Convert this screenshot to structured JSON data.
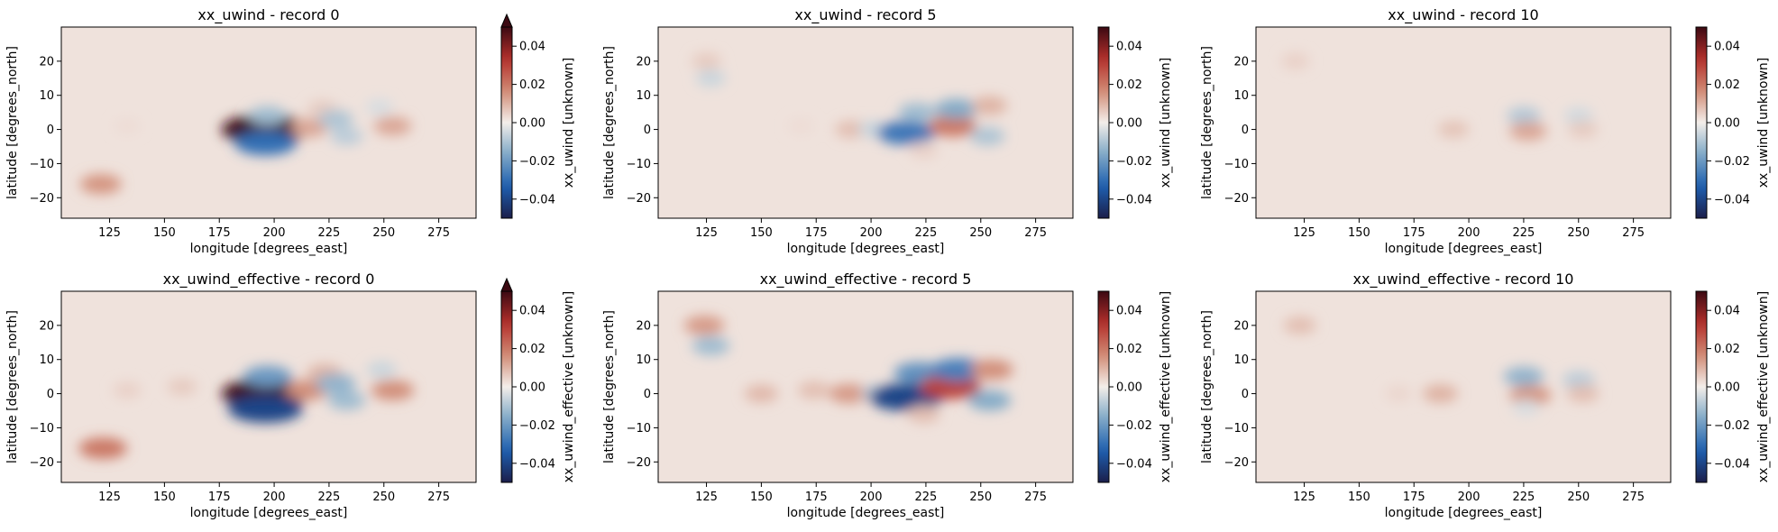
{
  "figure": {
    "panels": [
      {
        "title": "xx_uwind - record 0",
        "variable": "xx_uwind",
        "record": 0,
        "colorbar_label": "xx_uwind [unknown]",
        "extend": "max"
      },
      {
        "title": "xx_uwind - record 5",
        "variable": "xx_uwind",
        "record": 5,
        "colorbar_label": "xx_uwind [unknown]",
        "extend": "neither"
      },
      {
        "title": "xx_uwind - record 10",
        "variable": "xx_uwind",
        "record": 10,
        "colorbar_label": "xx_uwind [unknown]",
        "extend": "neither"
      },
      {
        "title": "xx_uwind_effective - record 0",
        "variable": "xx_uwind_effective",
        "record": 0,
        "colorbar_label": "xx_uwind_effective [unknown]",
        "extend": "max"
      },
      {
        "title": "xx_uwind_effective - record 5",
        "variable": "xx_uwind_effective",
        "record": 5,
        "colorbar_label": "xx_uwind_effective [unknown]",
        "extend": "neither"
      },
      {
        "title": "xx_uwind_effective - record 10",
        "variable": "xx_uwind_effective",
        "record": 10,
        "colorbar_label": "xx_uwind_effective [unknown]",
        "extend": "neither"
      }
    ]
  },
  "chart_data": {
    "type": "heatmap",
    "xlabel": "longitude [degrees_east]",
    "ylabel": "latitude [degrees_north]",
    "xlim": [
      103,
      292
    ],
    "ylim": [
      -26,
      30
    ],
    "xticks": [
      125,
      150,
      175,
      200,
      225,
      250,
      275
    ],
    "yticks": [
      -20,
      -10,
      0,
      10,
      20
    ],
    "colorbar": {
      "vmin": -0.05,
      "vmax": 0.05,
      "ticks": [
        -0.04,
        -0.02,
        0.0,
        0.02,
        0.04
      ],
      "tick_labels": [
        "−0.04",
        "−0.02",
        "0.00",
        "0.02",
        "0.04"
      ],
      "colormap": "balance (diverging: navy → blue → white → red → dark red)",
      "colors": [
        "#1b1e4a",
        "#1e5fb0",
        "#7fa8c6",
        "#f3eeea",
        "#d08a74",
        "#b3302b",
        "#3c0912"
      ]
    },
    "background_value": 0.002,
    "panels": [
      {
        "features": [
          {
            "lon": 196,
            "lat": 0,
            "value": 0.05
          },
          {
            "lon": 197,
            "lat": 4,
            "value": -0.012
          },
          {
            "lon": 196,
            "lat": -4,
            "value": -0.03
          },
          {
            "lon": 216,
            "lat": 0.5,
            "value": 0.012
          },
          {
            "lon": 222,
            "lat": 6,
            "value": 0.006
          },
          {
            "lon": 228,
            "lat": 3,
            "value": -0.01
          },
          {
            "lon": 233,
            "lat": -2,
            "value": -0.008
          },
          {
            "lon": 254,
            "lat": 1,
            "value": 0.012
          },
          {
            "lon": 248,
            "lat": 6.5,
            "value": -0.004
          },
          {
            "lon": 133,
            "lat": 1,
            "value": 0.003
          },
          {
            "lon": 121,
            "lat": -16,
            "value": 0.015
          }
        ]
      },
      {
        "features": [
          {
            "lon": 125,
            "lat": 20,
            "value": 0.006
          },
          {
            "lon": 127,
            "lat": 15,
            "value": -0.006
          },
          {
            "lon": 168,
            "lat": 1,
            "value": 0.003
          },
          {
            "lon": 191,
            "lat": 0,
            "value": 0.008
          },
          {
            "lon": 201,
            "lat": 0,
            "value": -0.006
          },
          {
            "lon": 216,
            "lat": -1,
            "value": -0.028
          },
          {
            "lon": 221,
            "lat": 5,
            "value": -0.012
          },
          {
            "lon": 237,
            "lat": 1,
            "value": 0.02
          },
          {
            "lon": 239,
            "lat": 6,
            "value": -0.016
          },
          {
            "lon": 254,
            "lat": 7,
            "value": 0.01
          },
          {
            "lon": 253,
            "lat": -2,
            "value": -0.01
          },
          {
            "lon": 224,
            "lat": -6,
            "value": 0.005
          }
        ]
      },
      {
        "features": [
          {
            "lon": 121,
            "lat": 20,
            "value": 0.005
          },
          {
            "lon": 193,
            "lat": 0,
            "value": 0.007
          },
          {
            "lon": 225,
            "lat": 4,
            "value": -0.009
          },
          {
            "lon": 227,
            "lat": -0.5,
            "value": 0.012
          },
          {
            "lon": 250,
            "lat": 4,
            "value": -0.005
          },
          {
            "lon": 252,
            "lat": 0,
            "value": 0.006
          }
        ]
      },
      {
        "features": [
          {
            "lon": 196,
            "lat": 0,
            "value": 0.05
          },
          {
            "lon": 197,
            "lat": 5,
            "value": -0.02
          },
          {
            "lon": 196,
            "lat": -4.5,
            "value": -0.04
          },
          {
            "lon": 158,
            "lat": 2,
            "value": 0.006
          },
          {
            "lon": 215,
            "lat": 1,
            "value": 0.016
          },
          {
            "lon": 223,
            "lat": 6,
            "value": 0.01
          },
          {
            "lon": 228,
            "lat": 3,
            "value": -0.014
          },
          {
            "lon": 233,
            "lat": -2,
            "value": -0.012
          },
          {
            "lon": 254,
            "lat": 1,
            "value": 0.016
          },
          {
            "lon": 249,
            "lat": 7,
            "value": -0.006
          },
          {
            "lon": 122,
            "lat": -16,
            "value": 0.02
          },
          {
            "lon": 133,
            "lat": 1,
            "value": 0.005
          }
        ]
      },
      {
        "features": [
          {
            "lon": 124,
            "lat": 20,
            "value": 0.014
          },
          {
            "lon": 127,
            "lat": 14,
            "value": -0.012
          },
          {
            "lon": 150,
            "lat": 0,
            "value": 0.009
          },
          {
            "lon": 174,
            "lat": 1,
            "value": 0.008
          },
          {
            "lon": 190,
            "lat": 0,
            "value": 0.014
          },
          {
            "lon": 203,
            "lat": 0,
            "value": -0.008
          },
          {
            "lon": 216,
            "lat": -1,
            "value": -0.04
          },
          {
            "lon": 222,
            "lat": 6,
            "value": -0.022
          },
          {
            "lon": 236,
            "lat": 2,
            "value": 0.03
          },
          {
            "lon": 240,
            "lat": 7,
            "value": -0.026
          },
          {
            "lon": 255,
            "lat": 7,
            "value": 0.016
          },
          {
            "lon": 254,
            "lat": -2,
            "value": -0.016
          },
          {
            "lon": 224,
            "lat": -6,
            "value": 0.008
          }
        ]
      },
      {
        "features": [
          {
            "lon": 123,
            "lat": 20,
            "value": 0.008
          },
          {
            "lon": 187,
            "lat": 0,
            "value": 0.01
          },
          {
            "lon": 168,
            "lat": 0,
            "value": 0.004
          },
          {
            "lon": 225,
            "lat": 5,
            "value": -0.014
          },
          {
            "lon": 228,
            "lat": -0.5,
            "value": 0.015
          },
          {
            "lon": 250,
            "lat": 4,
            "value": -0.008
          },
          {
            "lon": 252,
            "lat": 0,
            "value": 0.008
          },
          {
            "lon": 226,
            "lat": -4,
            "value": -0.004
          }
        ]
      }
    ]
  }
}
